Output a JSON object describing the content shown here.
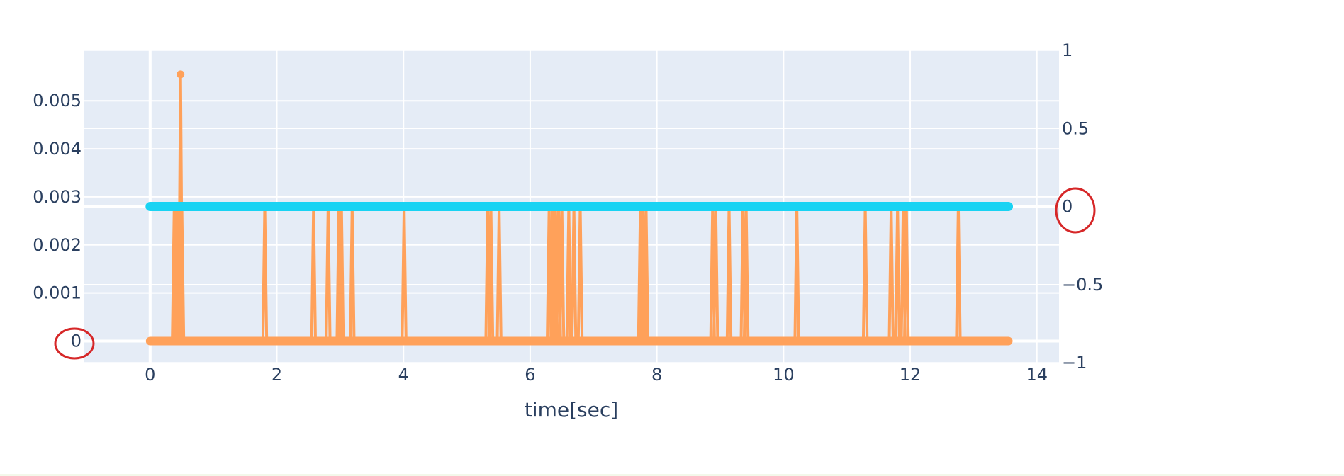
{
  "chart_data": {
    "type": "line",
    "title": "",
    "xlabel": "time[sec]",
    "ylabel": "",
    "xlim": [
      -1.05,
      14.35
    ],
    "ylim": [
      -0.00045,
      0.00605
    ],
    "y2lim": [
      -1,
      1
    ],
    "x_ticks": [
      "0",
      "2",
      "4",
      "6",
      "8",
      "10",
      "12",
      "14"
    ],
    "x_tick_values": [
      0,
      2,
      4,
      6,
      8,
      10,
      12,
      14
    ],
    "y_ticks": [
      "0",
      "0.001",
      "0.002",
      "0.003",
      "0.004",
      "0.005"
    ],
    "y_tick_values": [
      0,
      0.001,
      0.002,
      0.003,
      0.004,
      0.005
    ],
    "y2_ticks": [
      "−1",
      "−0.5",
      "0",
      "0.5",
      "1"
    ],
    "y2_tick_values": [
      -1,
      -0.5,
      0,
      0.5,
      1
    ],
    "x_start": 0,
    "x_end": 13.55,
    "series": [
      {
        "color": "#FFA15A",
        "axis": "left",
        "baseline": 0,
        "peak": {
          "x": 0.48,
          "y": 0.00555
        },
        "spikes": [
          {
            "x": 0.38,
            "y": 0.0028
          },
          {
            "x": 0.42,
            "y": 0.0028
          },
          {
            "x": 0.5,
            "y": 0.0028
          },
          {
            "x": 1.81,
            "y": 0.0028
          },
          {
            "x": 2.58,
            "y": 0.0028
          },
          {
            "x": 2.81,
            "y": 0.0028
          },
          {
            "x": 2.98,
            "y": 0.0028
          },
          {
            "x": 3.02,
            "y": 0.0028
          },
          {
            "x": 3.19,
            "y": 0.0028
          },
          {
            "x": 4.01,
            "y": 0.0028
          },
          {
            "x": 5.33,
            "y": 0.0028
          },
          {
            "x": 5.38,
            "y": 0.0028
          },
          {
            "x": 5.51,
            "y": 0.0028
          },
          {
            "x": 6.3,
            "y": 0.0028
          },
          {
            "x": 6.36,
            "y": 0.0028
          },
          {
            "x": 6.4,
            "y": 0.0028
          },
          {
            "x": 6.45,
            "y": 0.0028
          },
          {
            "x": 6.5,
            "y": 0.0028
          },
          {
            "x": 6.61,
            "y": 0.0028
          },
          {
            "x": 6.69,
            "y": 0.0028
          },
          {
            "x": 6.79,
            "y": 0.0028
          },
          {
            "x": 7.74,
            "y": 0.0028
          },
          {
            "x": 7.78,
            "y": 0.0028
          },
          {
            "x": 7.83,
            "y": 0.0028
          },
          {
            "x": 8.88,
            "y": 0.0028
          },
          {
            "x": 8.93,
            "y": 0.0028
          },
          {
            "x": 9.14,
            "y": 0.0028
          },
          {
            "x": 9.36,
            "y": 0.0028
          },
          {
            "x": 9.41,
            "y": 0.0028
          },
          {
            "x": 10.21,
            "y": 0.0028
          },
          {
            "x": 11.29,
            "y": 0.0028
          },
          {
            "x": 11.7,
            "y": 0.0028
          },
          {
            "x": 11.8,
            "y": 0.0028
          },
          {
            "x": 11.89,
            "y": 0.0028
          },
          {
            "x": 11.94,
            "y": 0.0028
          },
          {
            "x": 12.76,
            "y": 0.0028
          }
        ]
      },
      {
        "color": "#19D3F3",
        "axis": "right",
        "value": 0
      }
    ],
    "annotations": [
      {
        "label": "0",
        "axis": "left"
      },
      {
        "label": "0",
        "axis": "right"
      }
    ],
    "grid": true,
    "colors": {
      "plot_bg": "#E5ECF6",
      "grid": "#ffffff",
      "text": "#2a3f5f",
      "circle": "#d62728"
    }
  }
}
